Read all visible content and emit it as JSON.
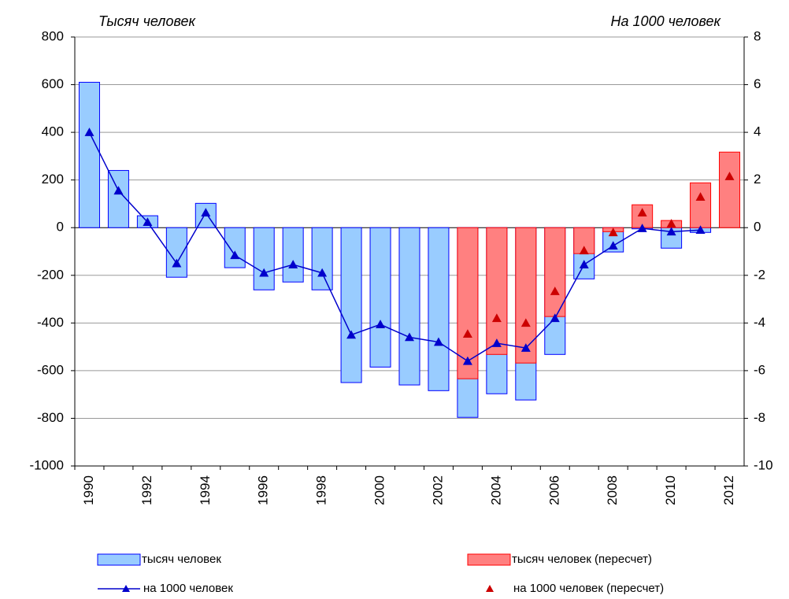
{
  "chart_data": {
    "type": "bar",
    "y_label": "Тысяч человек",
    "y2_label": "На 1000 человек",
    "categories": [
      "1990",
      null,
      "1992",
      null,
      "1994",
      null,
      "1996",
      null,
      "1998",
      null,
      "2000",
      null,
      "2002",
      null,
      "2004",
      null,
      "2006",
      null,
      "2008",
      null,
      "2010",
      null,
      "2012"
    ],
    "series": [
      {
        "name": "тысяч человек",
        "type": "bar",
        "color": "#99ccff",
        "stroke": "#0000ff",
        "values": [
          610,
          240,
          50,
          -208,
          102,
          -168,
          -261,
          -228,
          -261,
          -650,
          -585,
          -660,
          -684,
          -796,
          -697,
          -723,
          -532,
          -215,
          -102,
          -5,
          -86,
          -20,
          null
        ]
      },
      {
        "name": "тысяч человек (пересчет)",
        "type": "bar",
        "color": "#ff8080",
        "stroke": "#ff0000",
        "values": [
          null,
          null,
          null,
          null,
          null,
          null,
          null,
          null,
          null,
          null,
          null,
          null,
          null,
          -634,
          -532,
          -568,
          -373,
          -109,
          -17,
          96,
          30,
          188,
          317
        ]
      },
      {
        "name": "на 1000 человек",
        "type": "line",
        "axis": "y2",
        "color": "#0000cc",
        "values": [
          4.0,
          1.55,
          0.23,
          -1.5,
          0.63,
          -1.16,
          -1.9,
          -1.55,
          -1.9,
          -4.5,
          -4.06,
          -4.6,
          -4.8,
          -5.6,
          -4.85,
          -5.05,
          -3.8,
          -1.55,
          -0.76,
          -0.03,
          -0.17,
          -0.1,
          null
        ]
      },
      {
        "name": "на 1000 человек (пересчет)",
        "type": "scatter",
        "axis": "y2",
        "color": "#cc0000",
        "values": [
          null,
          null,
          null,
          null,
          null,
          null,
          null,
          null,
          null,
          null,
          null,
          null,
          null,
          -4.46,
          -3.8,
          -4.0,
          -2.67,
          -0.96,
          -0.2,
          0.63,
          0.17,
          1.29,
          2.15
        ]
      }
    ],
    "ylim": [
      -1000,
      800
    ],
    "yticks": [
      -1000,
      -800,
      -600,
      -400,
      -200,
      0,
      200,
      400,
      600,
      800
    ],
    "y2lim": [
      -10,
      8
    ],
    "y2ticks": [
      -10,
      -8,
      -6,
      -4,
      -2,
      0,
      2,
      4,
      6,
      8
    ],
    "grid": true
  }
}
